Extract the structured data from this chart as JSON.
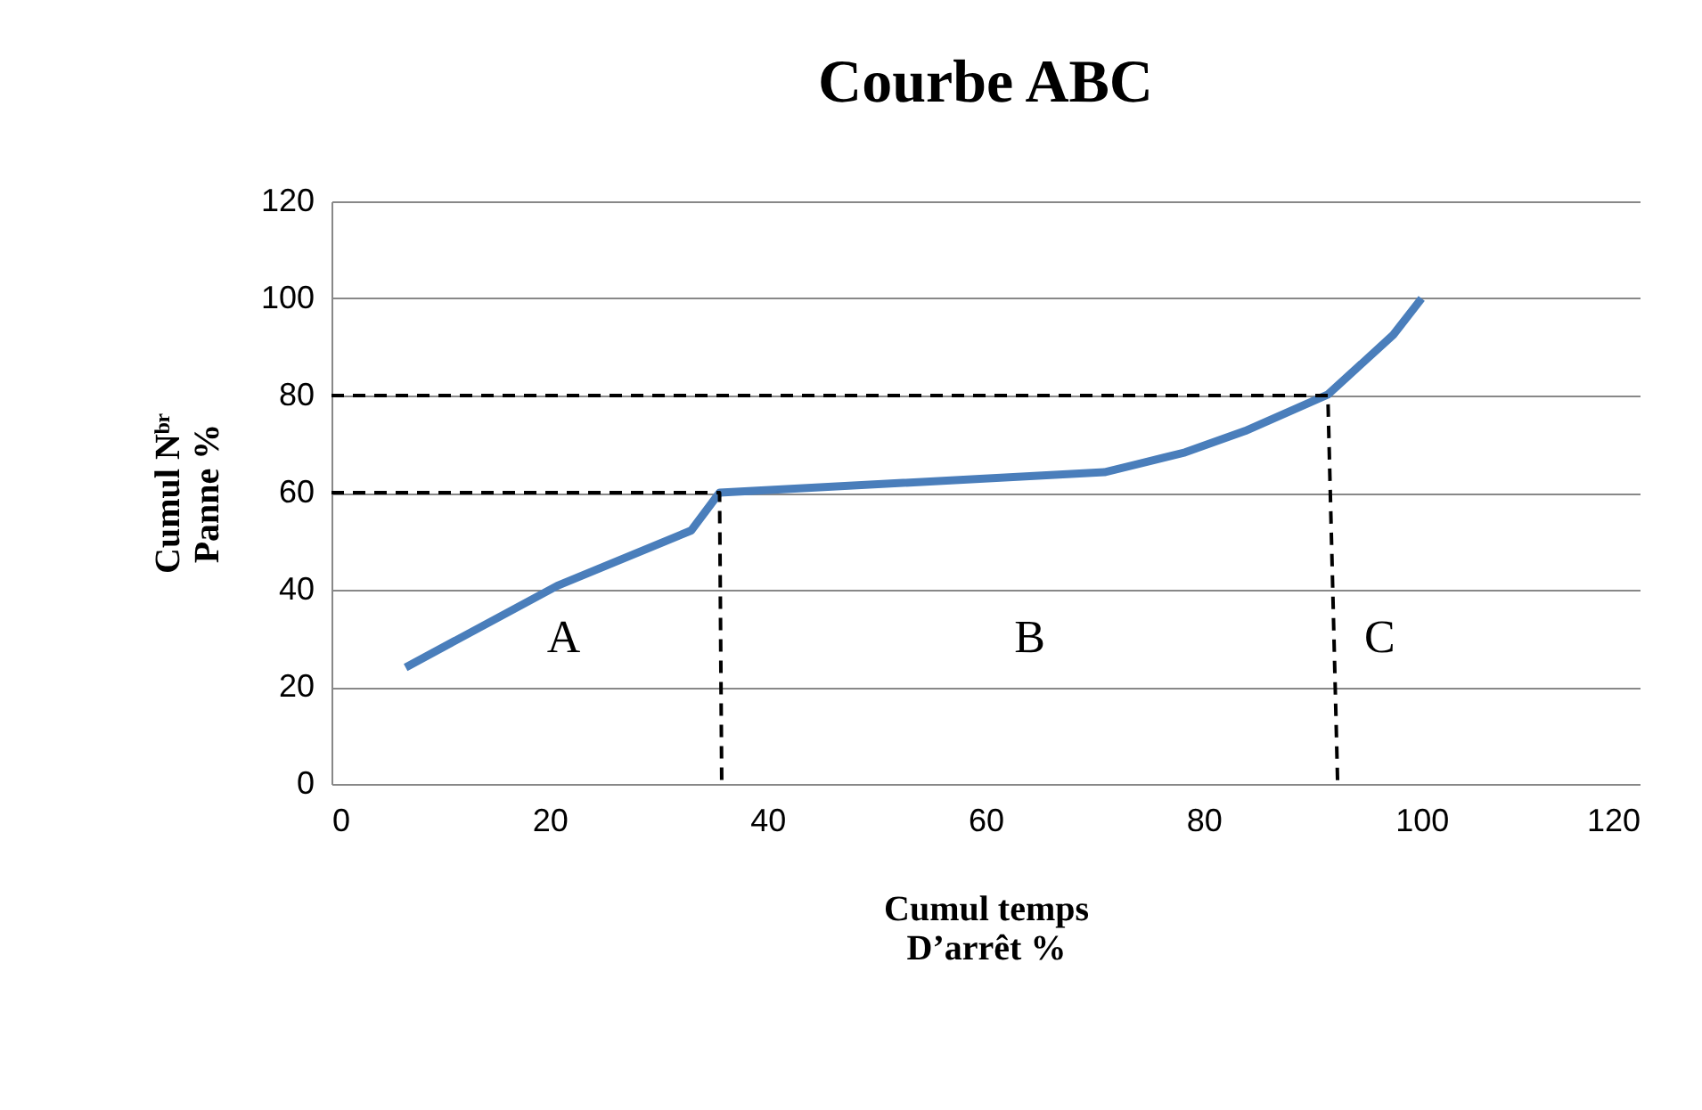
{
  "chart_data": {
    "type": "line",
    "title": "Courbe ABC",
    "xlabel": "Cumul temps D’arrêt %",
    "ylabel": "Cumul Nᵇʳ Panne %",
    "xlim": [
      0,
      120
    ],
    "xticks": [
      0,
      20,
      40,
      60,
      80,
      100,
      120
    ],
    "ylim": [
      0,
      120
    ],
    "yticks": [
      0,
      20,
      40,
      60,
      80,
      100,
      120
    ],
    "grid": "y",
    "marker": "none",
    "series": [
      {
        "color": "#4a7ebb",
        "line_style": "solid",
        "x": [
          6.8,
          20.7,
          33.0,
          35.6,
          70.9,
          78.3,
          83.8,
          91.4,
          97.4,
          100
        ],
        "values": [
          24.0,
          40.8,
          52.2,
          60,
          64.2,
          68.3,
          72.7,
          80.2,
          92.5,
          100
        ]
      },
      {
        "color": "#000000",
        "line_style": "dashed",
        "x": [
          0,
          35.6,
          35.8
        ],
        "values": [
          60,
          60,
          0
        ]
      },
      {
        "color": "#000000",
        "line_style": "dashed",
        "x": [
          0,
          91.4,
          92.3
        ],
        "values": [
          80,
          80,
          0
        ]
      }
    ],
    "annotations": [
      "A",
      "B",
      "C"
    ]
  }
}
